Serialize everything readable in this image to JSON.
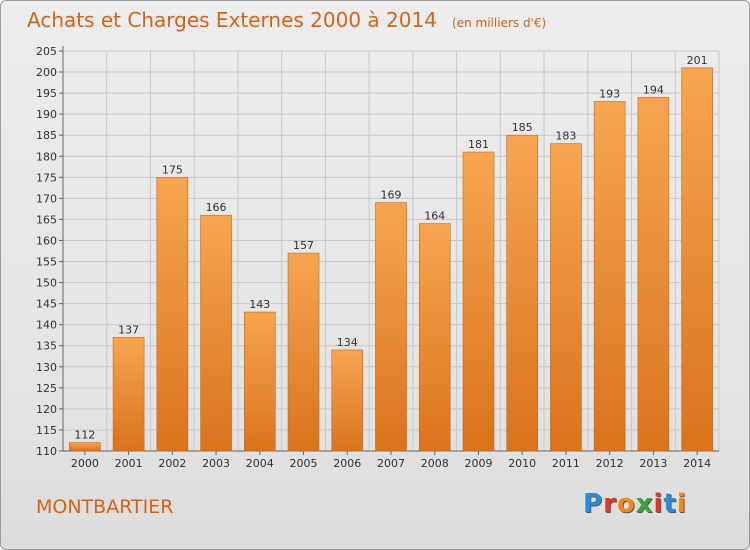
{
  "title": "Achats et Charges Externes 2000 à 2014",
  "unit_note": "(en milliers d'€)",
  "location": "MONTBARTIER",
  "logo": {
    "text": "Proxiti",
    "letters": [
      "P",
      "r",
      "o",
      "x",
      "i",
      "t",
      "i"
    ],
    "letter_colors": [
      "#2a8ad8",
      "#e0342d",
      "#f08a1c",
      "#3aa535",
      "#e0342d",
      "#2a8ad8",
      "#f08a1c"
    ]
  },
  "colors": {
    "bar_light": "#f7a552",
    "bar_dark": "#d9731c",
    "label": "#333333",
    "grid": "#c8c8c8"
  },
  "chart_data": {
    "type": "bar",
    "categories": [
      "2000",
      "2001",
      "2002",
      "2003",
      "2004",
      "2005",
      "2006",
      "2007",
      "2008",
      "2009",
      "2010",
      "2011",
      "2012",
      "2013",
      "2014"
    ],
    "values": [
      112,
      137,
      175,
      166,
      143,
      157,
      134,
      169,
      164,
      181,
      185,
      183,
      193,
      194,
      201
    ],
    "ylim": [
      110,
      205
    ],
    "yticks": [
      110,
      115,
      120,
      125,
      130,
      135,
      140,
      145,
      150,
      155,
      160,
      165,
      170,
      175,
      180,
      185,
      190,
      195,
      200,
      205
    ],
    "grid": true,
    "data_labels": true,
    "xlabel": "",
    "ylabel": ""
  }
}
